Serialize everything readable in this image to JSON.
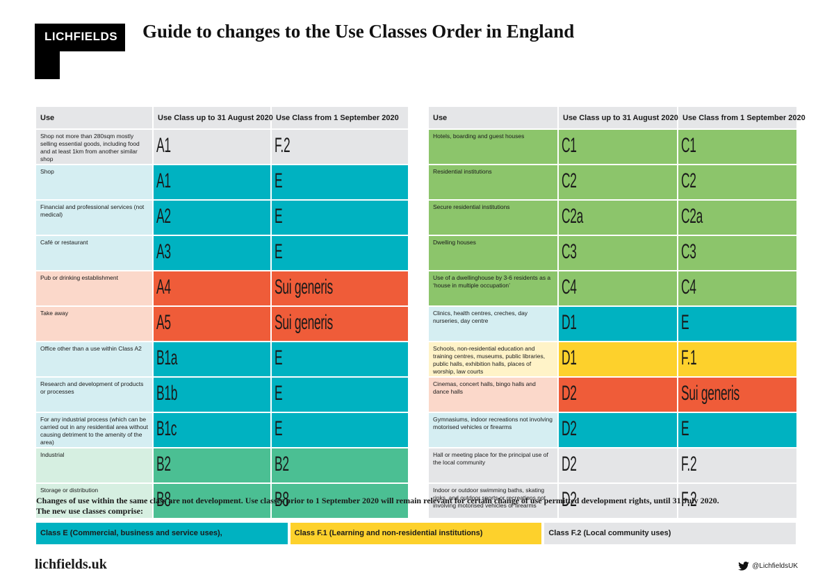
{
  "brand": {
    "logo_text": "LICHFIELDS"
  },
  "title": "Guide to changes to the Use Classes Order in England",
  "colors": {
    "grey": "#e4e5e7",
    "teal": "#00b2c1",
    "orange": "#ef5c39",
    "green_light": "#8cc56b",
    "green_dark": "#4bbf93",
    "yellow": "#fdd12c"
  },
  "headers": {
    "use": "Use",
    "before": "Use Class up to 31 August 2020",
    "after": "Use Class from 1 September 2020"
  },
  "left_rows": [
    {
      "use": "Shop not more than 280sqm mostly selling essential goods, including food and at least 1km from another similar shop",
      "before": "A1",
      "after": "F.2",
      "use_color": "#e4e5e7",
      "before_color": "#e4e5e7",
      "after_color": "#e4e5e7"
    },
    {
      "use": "Shop",
      "before": "A1",
      "after": "E",
      "use_color": "#d5eef2",
      "before_color": "#00b2c1",
      "after_color": "#00b2c1"
    },
    {
      "use": "Financial and professional services (not medical)",
      "before": "A2",
      "after": "E",
      "use_color": "#d5eef2",
      "before_color": "#00b2c1",
      "after_color": "#00b2c1"
    },
    {
      "use": "Café or restaurant",
      "before": "A3",
      "after": "E",
      "use_color": "#d5eef2",
      "before_color": "#00b2c1",
      "after_color": "#00b2c1"
    },
    {
      "use": "Pub or drinking establishment",
      "before": "A4",
      "after": "Sui generis",
      "use_color": "#fbd8ca",
      "before_color": "#ef5c39",
      "after_color": "#ef5c39"
    },
    {
      "use": "Take away",
      "before": "A5",
      "after": "Sui generis",
      "use_color": "#fbd8ca",
      "before_color": "#ef5c39",
      "after_color": "#ef5c39"
    },
    {
      "use": "Office other than a use within Class A2",
      "before": "B1a",
      "after": "E",
      "use_color": "#d5eef2",
      "before_color": "#00b2c1",
      "after_color": "#00b2c1"
    },
    {
      "use": "Research and development of products or processes",
      "before": "B1b",
      "after": "E",
      "use_color": "#d5eef2",
      "before_color": "#00b2c1",
      "after_color": "#00b2c1"
    },
    {
      "use": "For any industrial process (which can be carried out in any residential area without causing detriment to the amenity of the area)",
      "before": "B1c",
      "after": "E",
      "use_color": "#d5eef2",
      "before_color": "#00b2c1",
      "after_color": "#00b2c1"
    },
    {
      "use": "Industrial",
      "before": "B2",
      "after": "B2",
      "use_color": "#d6efe1",
      "before_color": "#4bbf93",
      "after_color": "#4bbf93"
    },
    {
      "use": "Storage or distribution",
      "before": "B8",
      "after": "B8",
      "use_color": "#d6efe1",
      "before_color": "#4bbf93",
      "after_color": "#4bbf93"
    }
  ],
  "right_rows": [
    {
      "use": "Hotels, boarding and guest houses",
      "before": "C1",
      "after": "C1",
      "use_color": "#8cc56b",
      "before_color": "#8cc56b",
      "after_color": "#8cc56b"
    },
    {
      "use": "Residential institutions",
      "before": "C2",
      "after": "C2",
      "use_color": "#8cc56b",
      "before_color": "#8cc56b",
      "after_color": "#8cc56b"
    },
    {
      "use": "Secure residential institutions",
      "before": "C2a",
      "after": "C2a",
      "use_color": "#8cc56b",
      "before_color": "#8cc56b",
      "after_color": "#8cc56b"
    },
    {
      "use": "Dwelling houses",
      "before": "C3",
      "after": "C3",
      "use_color": "#8cc56b",
      "before_color": "#8cc56b",
      "after_color": "#8cc56b"
    },
    {
      "use": "Use of a dwellinghouse by 3-6 residents as a ‘house in multiple occupation’",
      "before": "C4",
      "after": "C4",
      "use_color": "#8cc56b",
      "before_color": "#8cc56b",
      "after_color": "#8cc56b"
    },
    {
      "use": "Clinics, health centres, creches, day nurseries, day centre",
      "before": "D1",
      "after": "E",
      "use_color": "#d5eef2",
      "before_color": "#00b2c1",
      "after_color": "#00b2c1"
    },
    {
      "use": "Schools, non-residential education and training centres, museums, public libraries, public halls, exhibition halls, places of worship, law courts",
      "before": "D1",
      "after": "F.1",
      "use_color": "#fff3c8",
      "before_color": "#fdd12c",
      "after_color": "#fdd12c"
    },
    {
      "use": "Cinemas, concert halls, bingo halls and dance halls",
      "before": "D2",
      "after": "Sui generis",
      "use_color": "#fbd8ca",
      "before_color": "#ef5c39",
      "after_color": "#ef5c39"
    },
    {
      "use": "Gymnasiums, indoor recreations not involving motorised vehicles or firearms",
      "before": "D2",
      "after": "E",
      "use_color": "#d5eef2",
      "before_color": "#00b2c1",
      "after_color": "#00b2c1"
    },
    {
      "use": "Hall or meeting place for the principal use of the local community",
      "before": "D2",
      "after": "F.2",
      "use_color": "#e4e5e7",
      "before_color": "#e4e5e7",
      "after_color": "#e4e5e7"
    },
    {
      "use": "Indoor or outdoor swimming baths, skating rinks, and outdoor sports or recreations not involving motorised vehicles or firearms",
      "before": "D2",
      "after": "F.2",
      "use_color": "#e4e5e7",
      "before_color": "#e4e5e7",
      "after_color": "#e4e5e7"
    }
  ],
  "notes": {
    "line1": "Changes of use within the same class are not development.  Use classes prior to 1 September 2020 will remain relevant for certain change of use permitted development rights, until 31 July 2020.",
    "line2": "The new use classes comprise:"
  },
  "key": [
    {
      "label": "Class E (Commercial, business and service uses),",
      "color": "#00b2c1"
    },
    {
      "label": "Class F.1 (Learning and non-residential institutions)",
      "color": "#fdd12c"
    },
    {
      "label": "Class F.2 (Local community uses)",
      "color": "#e4e5e7"
    }
  ],
  "footer": {
    "url": "lichfields.uk",
    "twitter_handle": "@LichfieldsUK",
    "twitter_icon": "twitter-bird-icon"
  }
}
